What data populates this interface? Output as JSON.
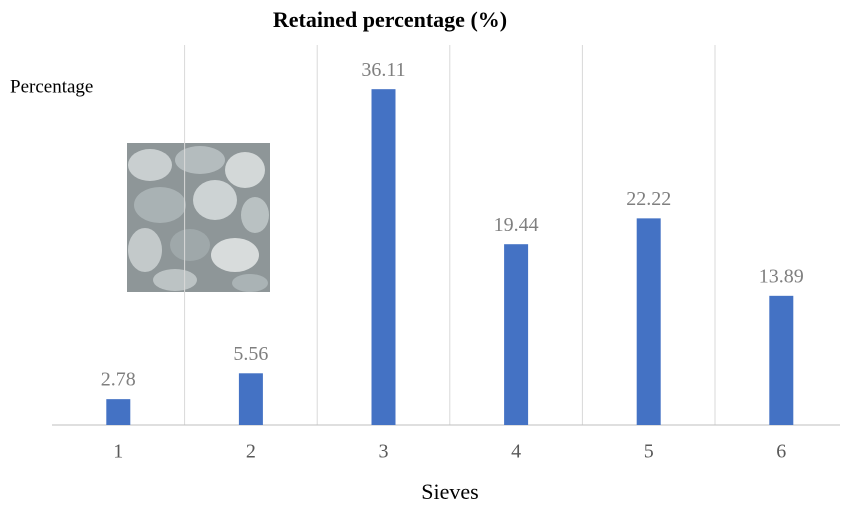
{
  "chart_data": {
    "type": "bar",
    "title": "Retained  percentage  (%)",
    "x_label": "Sieves",
    "y_label": "Percentage",
    "categories": [
      "1",
      "2",
      "3",
      "4",
      "5",
      "6"
    ],
    "values": [
      2.78,
      5.56,
      36.11,
      19.44,
      22.22,
      13.89
    ],
    "color": "#4472c4",
    "ylim": [
      0,
      40
    ],
    "grid": true
  }
}
